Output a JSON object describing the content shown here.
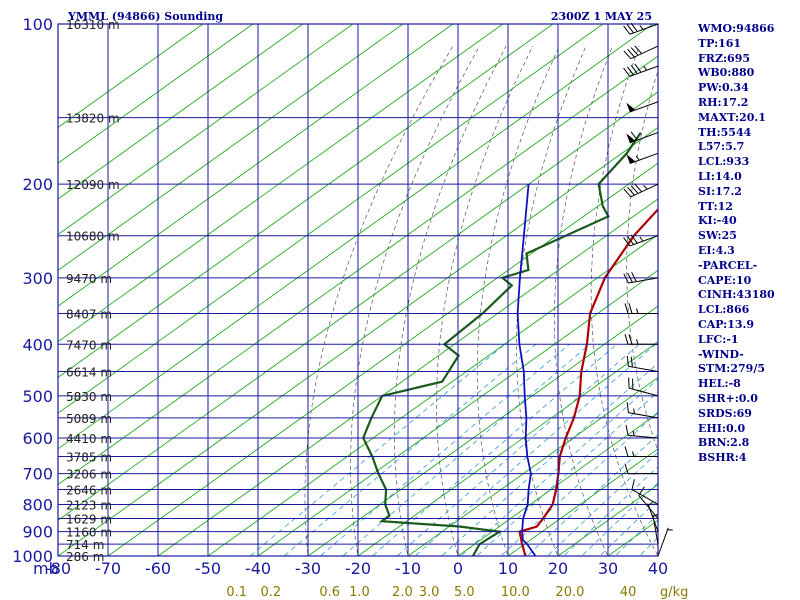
{
  "header": {
    "title": "YMML (94866) Sounding",
    "datetime": "2300Z  1 MAY 25"
  },
  "indices": [
    "WMO:94866",
    "TP:161",
    "FRZ:695",
    "WB0:880",
    "PW:0.34",
    "RH:17.2",
    "MAXT:20.1",
    "TH:5544",
    "L57:5.7",
    "LCL:933",
    "LI:14.0",
    "SI:17.2",
    "TT:12",
    "KI:-40",
    "SW:25",
    "EI:4.3",
    "-PARCEL-",
    "CAPE:10",
    "CINH:43180",
    "LCL:866",
    "CAP:13.9",
    "LFC:-1",
    "-WIND-",
    "STM:279/5",
    "HEL:-8",
    "SHR+:0.0",
    "SRDS:69",
    "EHI:0.0",
    "BRN:2.8",
    "BSHR:4"
  ],
  "colors": {
    "grid": "#1a1aa0",
    "isotherm": "#22aa22",
    "temperature": "#b00000",
    "dewpoint": "#1a5a1a",
    "parcel": "#1010c0",
    "mixing_ratio": "#3399dd",
    "adiabat": "#555555"
  },
  "chart_data": {
    "type": "line",
    "title": "YMML (94866) Sounding",
    "subtitle": "2300Z  1 MAY 25",
    "pressure_unit_label": "mb",
    "mixing_ratio_unit_label": "g/kg",
    "pressure_levels": [
      100,
      200,
      300,
      400,
      500,
      600,
      700,
      800,
      900,
      1000
    ],
    "pressure_tick_labels": [
      "100",
      "200",
      "300",
      "400",
      "500",
      "600",
      "700",
      "800",
      "900",
      "1000"
    ],
    "temperature_ticks": [
      -80,
      -70,
      -60,
      -50,
      -40,
      -30,
      -20,
      -10,
      0,
      10,
      20,
      30,
      40
    ],
    "temperature_tick_labels": [
      "-80",
      "-70",
      "-60",
      "-50",
      "-40",
      "-30",
      "-20",
      "-10",
      "0",
      "10",
      "20",
      "30",
      "40"
    ],
    "xlim": [
      -80,
      40
    ],
    "ylim": [
      1000,
      100
    ],
    "y_scale": "log",
    "height_labels": [
      {
        "p": 100,
        "label": "16310 m"
      },
      {
        "p": 150,
        "label": "13820 m"
      },
      {
        "p": 200,
        "label": "12090 m"
      },
      {
        "p": 250,
        "label": "10680 m"
      },
      {
        "p": 300,
        "label": "9470 m"
      },
      {
        "p": 350,
        "label": "8407 m"
      },
      {
        "p": 400,
        "label": "7470 m"
      },
      {
        "p": 450,
        "label": "6614 m"
      },
      {
        "p": 500,
        "label": "5830 m"
      },
      {
        "p": 550,
        "label": "5089 m"
      },
      {
        "p": 600,
        "label": "4410 m"
      },
      {
        "p": 650,
        "label": "3785 m"
      },
      {
        "p": 700,
        "label": "3206 m"
      },
      {
        "p": 750,
        "label": "2646 m"
      },
      {
        "p": 800,
        "label": "2123 m"
      },
      {
        "p": 850,
        "label": "1629 m"
      },
      {
        "p": 900,
        "label": "1160 m"
      },
      {
        "p": 950,
        "label": "714 m"
      },
      {
        "p": 1000,
        "label": "286 m"
      }
    ],
    "mixing_ratio_labels": [
      {
        "w": 0.1,
        "label": "0.1"
      },
      {
        "w": 0.2,
        "label": "0.2"
      },
      {
        "w": 0.6,
        "label": "0.6"
      },
      {
        "w": 1.0,
        "label": "1.0"
      },
      {
        "w": 2.0,
        "label": "2.0"
      },
      {
        "w": 3.0,
        "label": "3.0"
      },
      {
        "w": 5.0,
        "label": "5.0"
      },
      {
        "w": 10.0,
        "label": "10.0"
      },
      {
        "w": 20.0,
        "label": "20.0"
      },
      {
        "w": 40.0,
        "label": "40"
      }
    ],
    "series": [
      {
        "key": "temperature",
        "points": [
          {
            "p": 1017,
            "t": 15.0
          },
          {
            "p": 1000,
            "t": 13.5
          },
          {
            "p": 950,
            "t": 9.5
          },
          {
            "p": 900,
            "t": 5.5
          },
          {
            "p": 880,
            "t": 7.5
          },
          {
            "p": 850,
            "t": 6.5
          },
          {
            "p": 800,
            "t": 4.5
          },
          {
            "p": 750,
            "t": 1.0
          },
          {
            "p": 700,
            "t": -3.0
          },
          {
            "p": 650,
            "t": -7.5
          },
          {
            "p": 600,
            "t": -11.5
          },
          {
            "p": 550,
            "t": -15.5
          },
          {
            "p": 500,
            "t": -20.5
          },
          {
            "p": 450,
            "t": -27.0
          },
          {
            "p": 400,
            "t": -33.5
          },
          {
            "p": 350,
            "t": -41.5
          },
          {
            "p": 300,
            "t": -48.5
          },
          {
            "p": 250,
            "t": -54.5
          },
          {
            "p": 200,
            "t": -59.5
          },
          {
            "p": 175,
            "t": -64.0
          },
          {
            "p": 160,
            "t": -66.0
          },
          {
            "p": 150,
            "t": -61.0
          },
          {
            "p": 140,
            "t": -59.0
          },
          {
            "p": 120,
            "t": -57.5
          },
          {
            "p": 110,
            "t": -55.5
          },
          {
            "p": 100,
            "t": -54.0
          }
        ]
      },
      {
        "key": "dewpoint",
        "points": [
          {
            "p": 1017,
            "t": 5.5
          },
          {
            "p": 1000,
            "t": 3.0
          },
          {
            "p": 950,
            "t": 1.0
          },
          {
            "p": 900,
            "t": 1.5
          },
          {
            "p": 880,
            "t": -8.0
          },
          {
            "p": 860,
            "t": -25.0
          },
          {
            "p": 840,
            "t": -25.0
          },
          {
            "p": 800,
            "t": -29.0
          },
          {
            "p": 750,
            "t": -33.0
          },
          {
            "p": 700,
            "t": -39.0
          },
          {
            "p": 650,
            "t": -45.0
          },
          {
            "p": 600,
            "t": -52.0
          },
          {
            "p": 550,
            "t": -56.0
          },
          {
            "p": 500,
            "t": -60.0
          },
          {
            "p": 470,
            "t": -52.0
          },
          {
            "p": 420,
            "t": -56.0
          },
          {
            "p": 400,
            "t": -62.0
          },
          {
            "p": 350,
            "t": -63.0
          },
          {
            "p": 310,
            "t": -65.0
          },
          {
            "p": 300,
            "t": -69.0
          },
          {
            "p": 290,
            "t": -66.0
          },
          {
            "p": 270,
            "t": -71.0
          },
          {
            "p": 230,
            "t": -65.0
          },
          {
            "p": 220,
            "t": -69.0
          },
          {
            "p": 200,
            "t": -76.0
          },
          {
            "p": 175,
            "t": -79.0
          },
          {
            "p": 160,
            "t": -82.0
          }
        ]
      },
      {
        "key": "parcel",
        "points": [
          {
            "p": 1017,
            "t": 18.0
          },
          {
            "p": 1000,
            "t": 15.5
          },
          {
            "p": 950,
            "t": 10.5
          },
          {
            "p": 933,
            "t": 8.5
          },
          {
            "p": 900,
            "t": 6.0
          },
          {
            "p": 850,
            "t": 2.5
          },
          {
            "p": 800,
            "t": -0.5
          },
          {
            "p": 750,
            "t": -4.5
          },
          {
            "p": 700,
            "t": -8.5
          },
          {
            "p": 650,
            "t": -14.0
          },
          {
            "p": 600,
            "t": -19.5
          },
          {
            "p": 550,
            "t": -25.0
          },
          {
            "p": 500,
            "t": -31.5
          },
          {
            "p": 450,
            "t": -38.5
          },
          {
            "p": 400,
            "t": -47.0
          },
          {
            "p": 350,
            "t": -56.0
          },
          {
            "p": 300,
            "t": -65.5
          },
          {
            "p": 250,
            "t": -76.5
          },
          {
            "p": 200,
            "t": -90.0
          }
        ]
      }
    ],
    "wind_barbs": [
      {
        "p": 100,
        "dir": 250,
        "spd": 35
      },
      {
        "p": 110,
        "dir": 245,
        "spd": 40
      },
      {
        "p": 120,
        "dir": 250,
        "spd": 45
      },
      {
        "p": 140,
        "dir": 250,
        "spd": 50
      },
      {
        "p": 160,
        "dir": 250,
        "spd": 60
      },
      {
        "p": 175,
        "dir": 250,
        "spd": 55
      },
      {
        "p": 200,
        "dir": 245,
        "spd": 45
      },
      {
        "p": 250,
        "dir": 250,
        "spd": 35
      },
      {
        "p": 300,
        "dir": 260,
        "spd": 30
      },
      {
        "p": 350,
        "dir": 270,
        "spd": 25
      },
      {
        "p": 400,
        "dir": 270,
        "spd": 25
      },
      {
        "p": 450,
        "dir": 280,
        "spd": 20
      },
      {
        "p": 500,
        "dir": 285,
        "spd": 20
      },
      {
        "p": 550,
        "dir": 280,
        "spd": 15
      },
      {
        "p": 600,
        "dir": 275,
        "spd": 15
      },
      {
        "p": 650,
        "dir": 270,
        "spd": 15
      },
      {
        "p": 700,
        "dir": 270,
        "spd": 10
      },
      {
        "p": 800,
        "dir": 300,
        "spd": 10
      },
      {
        "p": 850,
        "dir": 320,
        "spd": 10
      },
      {
        "p": 900,
        "dir": 340,
        "spd": 5
      },
      {
        "p": 950,
        "dir": 350,
        "spd": 5
      },
      {
        "p": 1000,
        "dir": 20,
        "spd": 5
      }
    ]
  }
}
